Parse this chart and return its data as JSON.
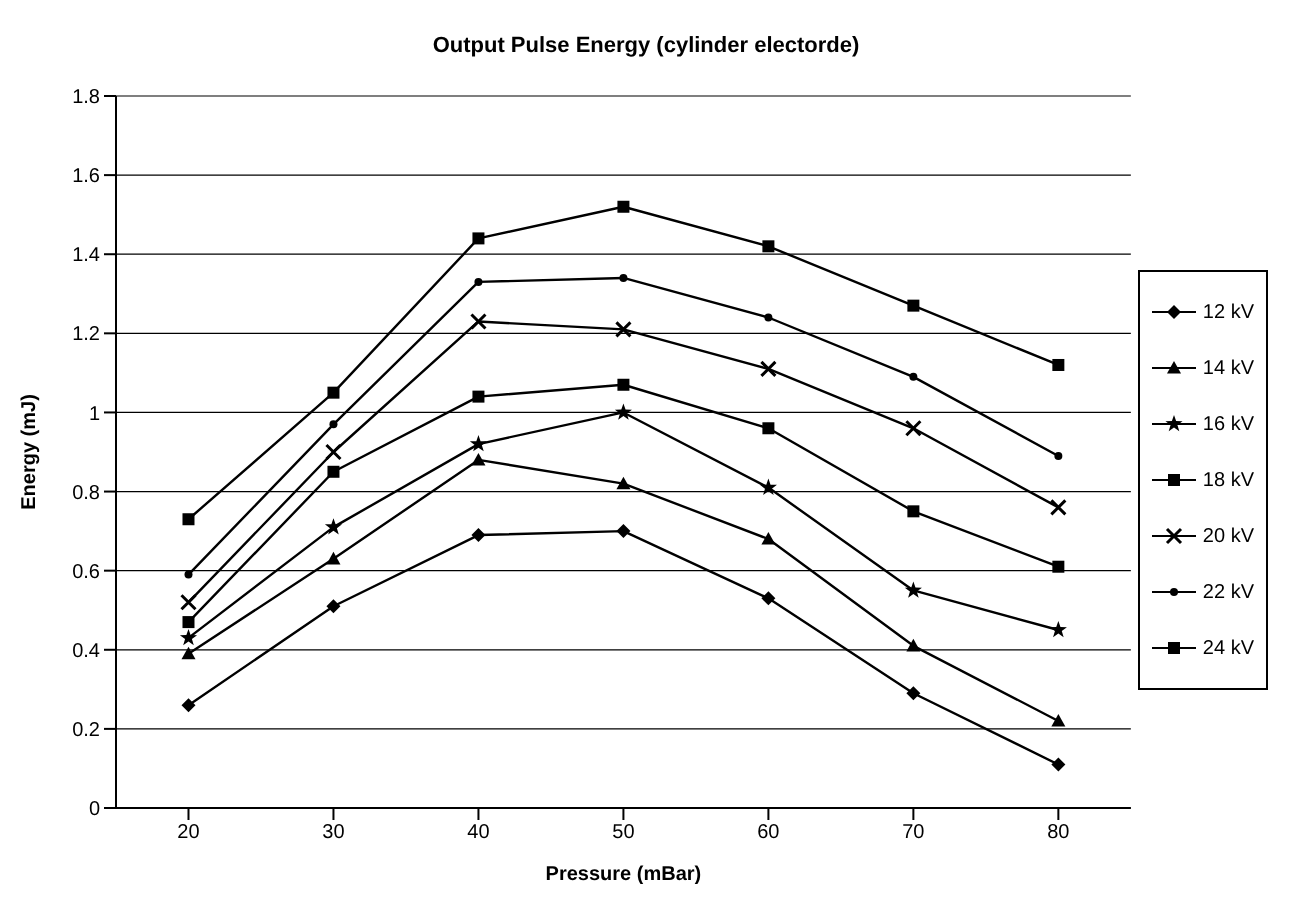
{
  "chart_data": {
    "type": "line",
    "title": "Output Pulse Energy (cylinder electorde)",
    "xlabel": "Pressure (mBar)",
    "ylabel": "Energy (mJ)",
    "x": [
      20,
      30,
      40,
      50,
      60,
      70,
      80
    ],
    "series": [
      {
        "name": "12 kV",
        "color": "#000000",
        "marker": "diamond",
        "values": [
          0.26,
          0.51,
          0.69,
          0.7,
          0.53,
          0.29,
          0.11
        ]
      },
      {
        "name": "14 kV",
        "color": "#000000",
        "marker": "triangle",
        "values": [
          0.39,
          0.63,
          0.88,
          0.82,
          0.68,
          0.41,
          0.22
        ]
      },
      {
        "name": "16 kV",
        "color": "#000000",
        "marker": "star",
        "values": [
          0.43,
          0.71,
          0.92,
          1.0,
          0.81,
          0.55,
          0.45
        ]
      },
      {
        "name": "18 kV",
        "color": "#000000",
        "marker": "square",
        "values": [
          0.47,
          0.85,
          1.04,
          1.07,
          0.96,
          0.75,
          0.61
        ]
      },
      {
        "name": "20 kV",
        "color": "#000000",
        "marker": "cross",
        "values": [
          0.52,
          0.9,
          1.23,
          1.21,
          1.11,
          0.96,
          0.76
        ]
      },
      {
        "name": "22 kV",
        "color": "#000000",
        "marker": "circle",
        "values": [
          0.59,
          0.97,
          1.33,
          1.34,
          1.24,
          1.09,
          0.89
        ]
      },
      {
        "name": "24 kV",
        "color": "#000000",
        "marker": "square",
        "values": [
          0.73,
          1.05,
          1.44,
          1.52,
          1.42,
          1.27,
          1.12
        ]
      }
    ],
    "xlim": [
      15,
      85
    ],
    "xticks": [
      20,
      30,
      40,
      50,
      60,
      70,
      80
    ],
    "ylim": [
      0,
      1.8
    ],
    "yticks": [
      0,
      0.2,
      0.4,
      0.6,
      0.8,
      1,
      1.2,
      1.4,
      1.6,
      1.8
    ],
    "grid": "y",
    "legend": "right",
    "line_style": "solid"
  }
}
